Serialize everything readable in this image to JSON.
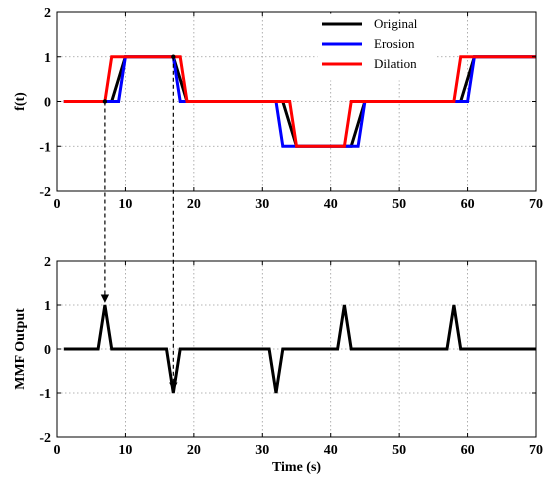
{
  "chart_data": [
    {
      "type": "line",
      "title": "",
      "xlabel": "",
      "ylabel": "f(t)",
      "xlim": [
        0,
        70
      ],
      "ylim": [
        -2,
        2
      ],
      "xticks": [
        0,
        10,
        20,
        30,
        40,
        50,
        60,
        70
      ],
      "yticks": [
        -2,
        -1,
        0,
        1,
        2
      ],
      "grid": true,
      "legend": "top-right",
      "series": [
        {
          "name": "Original",
          "color": "#000000",
          "x": [
            1,
            8,
            10,
            17,
            19,
            33,
            35,
            43,
            45,
            59,
            61,
            70
          ],
          "y": [
            0,
            0,
            1,
            1,
            0,
            0,
            -1,
            -1,
            0,
            0,
            1,
            1
          ]
        },
        {
          "name": "Erosion",
          "color": "#0000ff",
          "x": [
            1,
            9,
            10,
            17,
            18,
            20,
            32,
            33,
            35,
            44,
            45,
            60,
            61,
            70
          ],
          "y": [
            0,
            0,
            1,
            1,
            0,
            0,
            0,
            -1,
            -1,
            -1,
            0,
            0,
            1,
            1
          ]
        },
        {
          "name": "Dilation",
          "color": "#ff0000",
          "x": [
            1,
            7,
            8,
            18,
            19,
            34,
            35,
            42,
            43,
            58,
            59,
            70
          ],
          "y": [
            0,
            0,
            1,
            1,
            0,
            0,
            -1,
            -1,
            0,
            0,
            1,
            1
          ]
        }
      ]
    },
    {
      "type": "line",
      "title": "",
      "xlabel": "Time (s)",
      "ylabel": "MMF Output",
      "xlim": [
        0,
        70
      ],
      "ylim": [
        -2,
        2
      ],
      "xticks": [
        0,
        10,
        20,
        30,
        40,
        50,
        60,
        70
      ],
      "yticks": [
        -2,
        -1,
        0,
        1,
        2
      ],
      "grid": true,
      "series": [
        {
          "name": "",
          "color": "#000000",
          "x": [
            1,
            6,
            7,
            8,
            16,
            17,
            18,
            31,
            32,
            33,
            41,
            42,
            43,
            57,
            58,
            59,
            70
          ],
          "y": [
            0,
            0,
            1,
            0,
            0,
            -1,
            0,
            0,
            -1,
            0,
            0,
            1,
            0,
            0,
            1,
            0,
            0
          ]
        }
      ]
    }
  ],
  "annotations": {
    "arrows": [
      {
        "from": {
          "x": 7,
          "y": 0
        },
        "to": {
          "x": 7,
          "y": 1
        }
      },
      {
        "from": {
          "x": 17,
          "y": 1
        },
        "to": {
          "x": 17,
          "y": -1
        }
      }
    ]
  }
}
